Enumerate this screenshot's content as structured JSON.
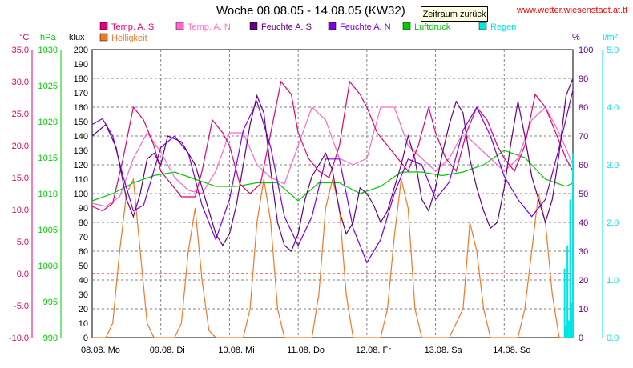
{
  "header": {
    "title": "Woche 08.08.05 - 14.08.05 (KW32)",
    "back_button": "Zeitraum zurück",
    "site": "www.wetter.wiesenstadt.at.tt"
  },
  "colors": {
    "temp_s": "#e0007a",
    "temp_n": "#ff69c8",
    "hum_s": "#660080",
    "hum_n": "#7a00e6",
    "pressure": "#00cc00",
    "rain": "#00e5e5",
    "light": "#f07828",
    "zero_line": "#cc0000"
  },
  "chart_data": {
    "type": "line",
    "title": "Woche 08.08.05 - 14.08.05 (KW32)",
    "x_labels": [
      "08.08.  Mo",
      "09.08.  Di",
      "10.08.  Mi",
      "11.08.  Do",
      "12.08.  Fr",
      "13.08.  Sa",
      "14.08.  So"
    ],
    "axes": {
      "temp": {
        "unit": "°C",
        "min": -10,
        "max": 35,
        "ticks": [
          "35.0",
          "30.0",
          "25.0",
          "20.0",
          "15.0",
          "10.0",
          "5.0",
          "0.0",
          "-5.0",
          "-10.0"
        ]
      },
      "pressure": {
        "unit": "hPa",
        "min": 990,
        "max": 1030,
        "ticks": [
          "1030",
          "1025",
          "1020",
          "1015",
          "1010",
          "1005",
          "1000",
          "995",
          "990"
        ]
      },
      "light": {
        "unit": "klux",
        "min": 0,
        "max": 200,
        "ticks": [
          "200",
          "190",
          "180",
          "170",
          "160",
          "150",
          "140",
          "130",
          "120",
          "110",
          "100",
          "90",
          "80",
          "70",
          "60",
          "50",
          "40",
          "30",
          "20",
          "10",
          "0"
        ]
      },
      "humidity": {
        "unit": "%",
        "min": 0,
        "max": 100,
        "ticks": [
          "100",
          "90",
          "80",
          "70",
          "60",
          "50",
          "40",
          "30",
          "20",
          "10",
          "0"
        ]
      },
      "rain": {
        "unit": "l/m²",
        "min": 0,
        "max": 5,
        "ticks": [
          "5.0",
          "4.0",
          "3.0",
          "2.0",
          "1.0",
          "0.0"
        ]
      }
    },
    "x_range": [
      0,
      7
    ],
    "grid": true,
    "legend": "top",
    "series": [
      {
        "name": "Temp. A. S",
        "axis": "temp",
        "x": [
          0,
          0.15,
          0.3,
          0.45,
          0.6,
          0.75,
          0.9,
          1.0,
          1.15,
          1.3,
          1.5,
          1.6,
          1.75,
          1.9,
          2.0,
          2.15,
          2.3,
          2.45,
          2.6,
          2.75,
          2.9,
          3.0,
          3.15,
          3.3,
          3.45,
          3.6,
          3.75,
          3.9,
          4.0,
          4.15,
          4.3,
          4.45,
          4.6,
          4.75,
          4.9,
          5.0,
          5.15,
          5.3,
          5.45,
          5.6,
          5.75,
          5.9,
          6.0,
          6.15,
          6.3,
          6.45,
          6.6,
          6.75,
          6.9,
          7.0
        ],
        "y": [
          10.5,
          9.8,
          11,
          18,
          26,
          24,
          20,
          16,
          14,
          12,
          12,
          16,
          24,
          22,
          20,
          14,
          12.5,
          14,
          22,
          30,
          28,
          22,
          18,
          16,
          15,
          20,
          30,
          28,
          26,
          22,
          20,
          18,
          16,
          20,
          26,
          22,
          18,
          16,
          22,
          26,
          24,
          20,
          18,
          16,
          20,
          28,
          26,
          22,
          18,
          16
        ]
      },
      {
        "name": "Temp. A. N",
        "axis": "temp",
        "x": [
          0,
          0.2,
          0.4,
          0.6,
          0.8,
          1.0,
          1.2,
          1.4,
          1.6,
          1.8,
          2.0,
          2.2,
          2.4,
          2.6,
          2.8,
          3.0,
          3.2,
          3.4,
          3.6,
          3.8,
          4.0,
          4.2,
          4.4,
          4.6,
          4.8,
          5.0,
          5.2,
          5.4,
          5.6,
          5.8,
          6.0,
          6.2,
          6.4,
          6.6,
          6.8,
          7.0
        ],
        "y": [
          11,
          10.5,
          12,
          18,
          22,
          19,
          15,
          13,
          12.5,
          16,
          22,
          22,
          17,
          15,
          14,
          20,
          26,
          24,
          18,
          17,
          18,
          26,
          26,
          20,
          18,
          16,
          18,
          22,
          20,
          18,
          16,
          18,
          24,
          26,
          22,
          17
        ]
      },
      {
        "name": "Feuchte A. S",
        "axis": "humidity",
        "x": [
          0,
          0.1,
          0.2,
          0.35,
          0.5,
          0.6,
          0.7,
          0.8,
          0.9,
          1.0,
          1.1,
          1.3,
          1.5,
          1.7,
          1.8,
          1.9,
          2.0,
          2.1,
          2.2,
          2.3,
          2.4,
          2.5,
          2.6,
          2.7,
          2.8,
          2.9,
          3.0,
          3.1,
          3.2,
          3.3,
          3.4,
          3.5,
          3.6,
          3.7,
          3.8,
          3.9,
          4.0,
          4.1,
          4.2,
          4.3,
          4.4,
          4.5,
          4.6,
          4.7,
          4.8,
          4.9,
          5.0,
          5.1,
          5.2,
          5.3,
          5.4,
          5.5,
          5.6,
          5.7,
          5.8,
          5.9,
          6.0,
          6.1,
          6.2,
          6.3,
          6.4,
          6.5,
          6.6,
          6.7,
          6.8,
          6.9,
          7.0
        ],
        "y": [
          70,
          72,
          74,
          66,
          48,
          42,
          50,
          62,
          64,
          60,
          70,
          68,
          60,
          44,
          36,
          32,
          36,
          46,
          60,
          74,
          84,
          78,
          58,
          40,
          32,
          30,
          36,
          48,
          56,
          60,
          64,
          58,
          44,
          36,
          40,
          52,
          50,
          46,
          40,
          44,
          52,
          60,
          70,
          62,
          48,
          44,
          52,
          64,
          74,
          82,
          78,
          62,
          52,
          44,
          38,
          40,
          52,
          68,
          82,
          70,
          56,
          48,
          40,
          48,
          64,
          84,
          90
        ]
      },
      {
        "name": "Feuchte A. N",
        "axis": "humidity",
        "x": [
          0,
          0.15,
          0.3,
          0.45,
          0.6,
          0.75,
          0.9,
          1.0,
          1.2,
          1.4,
          1.6,
          1.8,
          2.0,
          2.2,
          2.4,
          2.6,
          2.8,
          3.0,
          3.2,
          3.4,
          3.6,
          3.8,
          4.0,
          4.2,
          4.4,
          4.6,
          4.8,
          5.0,
          5.2,
          5.4,
          5.6,
          5.8,
          6.0,
          6.2,
          6.4,
          6.6,
          6.8,
          7.0
        ],
        "y": [
          74,
          76,
          70,
          56,
          44,
          46,
          58,
          66,
          70,
          64,
          46,
          34,
          48,
          72,
          82,
          66,
          42,
          32,
          42,
          62,
          62,
          38,
          26,
          34,
          50,
          62,
          60,
          48,
          54,
          72,
          80,
          70,
          56,
          48,
          42,
          48,
          66,
          86
        ]
      },
      {
        "name": "Luftdruck",
        "axis": "pressure",
        "x": [
          0,
          0.3,
          0.6,
          0.9,
          1.2,
          1.5,
          1.8,
          2.1,
          2.4,
          2.7,
          3.0,
          3.3,
          3.6,
          3.9,
          4.2,
          4.5,
          4.8,
          5.1,
          5.4,
          5.7,
          6.0,
          6.3,
          6.6,
          6.9,
          7.0
        ],
        "y": [
          1009,
          1010,
          1011.5,
          1012.5,
          1013,
          1012,
          1011,
          1011,
          1011.5,
          1011.5,
          1009,
          1011.5,
          1011.5,
          1010,
          1011,
          1013,
          1013,
          1012.5,
          1013,
          1014,
          1016,
          1015,
          1012,
          1011,
          1011.5
        ]
      },
      {
        "name": "Helligkeit",
        "axis": "light",
        "x": [
          0,
          0.1,
          0.2,
          0.3,
          0.4,
          0.5,
          0.6,
          0.7,
          0.8,
          0.9,
          1.0,
          1.1,
          1.2,
          1.3,
          1.4,
          1.5,
          1.6,
          1.7,
          1.8,
          1.9,
          2.0,
          2.1,
          2.2,
          2.3,
          2.4,
          2.5,
          2.6,
          2.7,
          2.8,
          2.9,
          3.0,
          3.1,
          3.2,
          3.3,
          3.4,
          3.5,
          3.6,
          3.7,
          3.8,
          3.9,
          4.0,
          4.1,
          4.2,
          4.3,
          4.4,
          4.5,
          4.6,
          4.7,
          4.8,
          4.9,
          5.0,
          5.1,
          5.2,
          5.3,
          5.4,
          5.5,
          5.6,
          5.7,
          5.8,
          5.9,
          6.0,
          6.1,
          6.2,
          6.3,
          6.4,
          6.5,
          6.6,
          6.7,
          6.8,
          6.9,
          7.0
        ],
        "y": [
          0,
          0,
          0,
          10,
          60,
          100,
          110,
          60,
          10,
          0,
          0,
          0,
          0,
          10,
          60,
          90,
          40,
          5,
          0,
          0,
          0,
          0,
          0,
          20,
          80,
          110,
          80,
          20,
          0,
          0,
          0,
          0,
          0,
          30,
          90,
          110,
          90,
          30,
          0,
          0,
          0,
          0,
          0,
          20,
          70,
          110,
          90,
          20,
          0,
          0,
          0,
          0,
          0,
          10,
          20,
          80,
          60,
          20,
          0,
          0,
          0,
          0,
          0,
          20,
          60,
          100,
          80,
          30,
          0,
          0,
          0
        ]
      },
      {
        "name": "Regen",
        "axis": "rain",
        "x": [
          0,
          6.85,
          6.88,
          6.9,
          6.92,
          6.94,
          6.96,
          6.98,
          7.0
        ],
        "y": [
          0,
          0,
          1.2,
          0.2,
          1.6,
          0.3,
          2.4,
          0.6,
          3.2
        ]
      }
    ]
  }
}
